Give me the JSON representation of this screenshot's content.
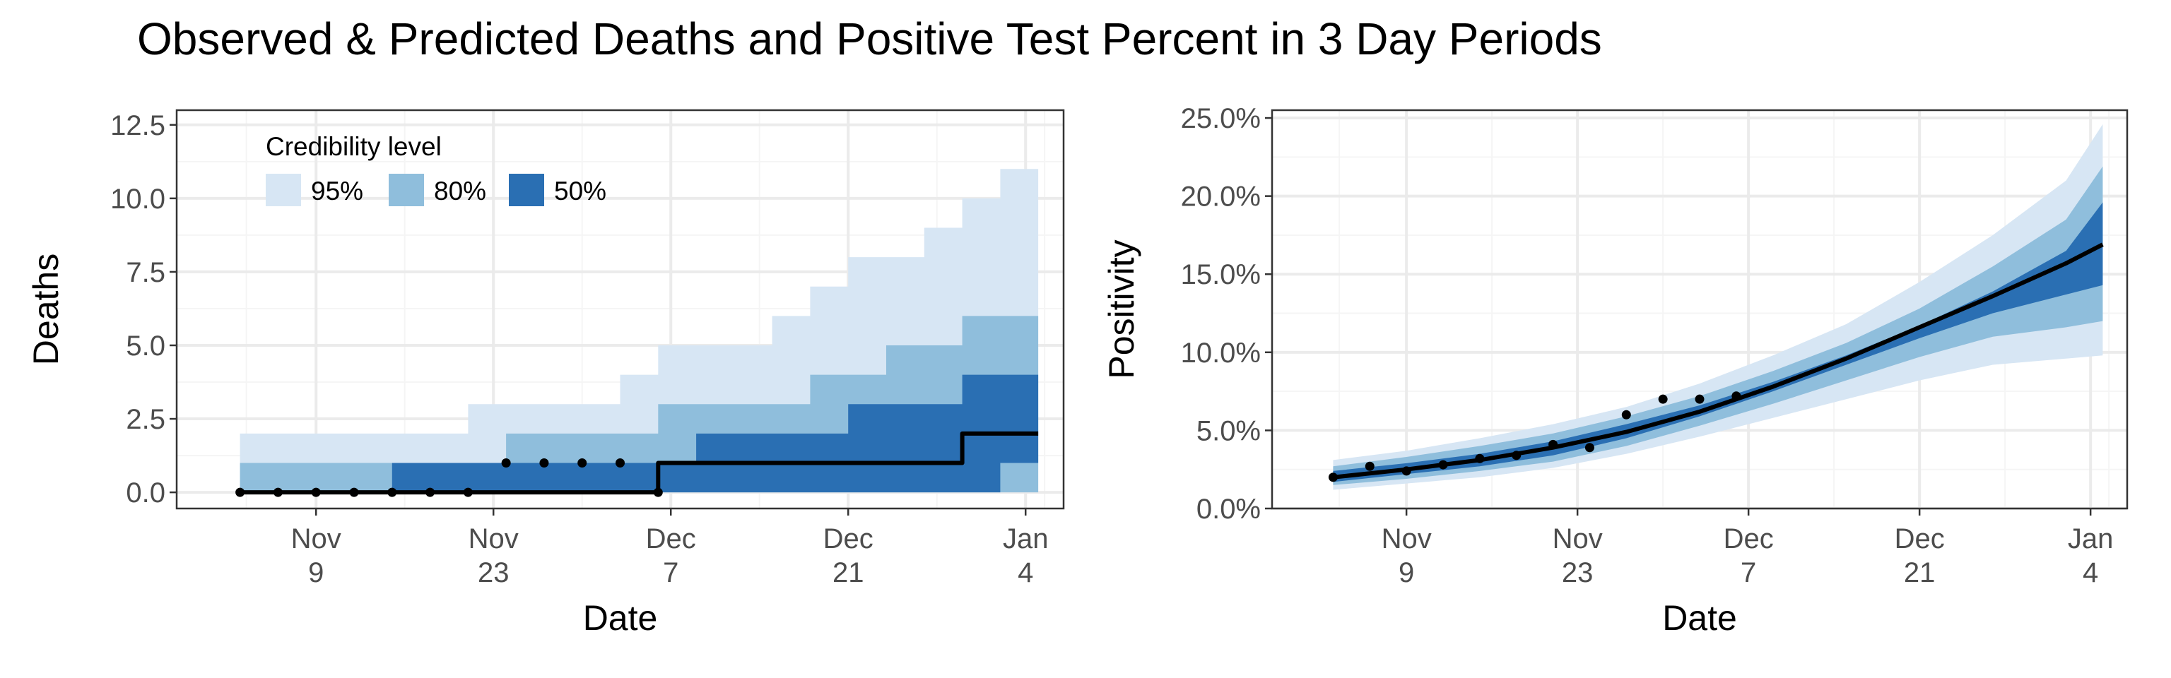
{
  "title": "Observed & Predicted Deaths and Positive Test Percent in 3 Day Periods",
  "colors": {
    "band95": "#d7e6f4",
    "band80": "#8fbedc",
    "band50": "#2a6fb3",
    "line": "#000000",
    "grid_major": "#ebebeb",
    "grid_minor": "#f5f5f5",
    "border": "#333333"
  },
  "legend": {
    "title": "Credibility level",
    "items": [
      "95%",
      "80%",
      "50%"
    ],
    "placement": "top-left inside deaths panel"
  },
  "chart_data": [
    {
      "type": "area",
      "panel": "deaths",
      "xlabel": "Date",
      "ylabel": "Deaths",
      "ylim": [
        -0.55,
        13.0
      ],
      "xlim": [
        "2020-10-29",
        "2021-01-07"
      ],
      "x_ticks": [
        "2020-11-09",
        "2020-11-23",
        "2020-12-07",
        "2020-12-21",
        "2021-01-04"
      ],
      "x_tick_labels": [
        [
          "Nov",
          "9"
        ],
        [
          "Nov",
          "23"
        ],
        [
          "Dec",
          "7"
        ],
        [
          "Dec",
          "21"
        ],
        [
          "Jan",
          "4"
        ]
      ],
      "y_ticks": [
        0,
        2.5,
        5,
        7.5,
        10,
        12.5
      ],
      "y_tick_labels": [
        "0.0",
        "2.5",
        "5.0",
        "7.5",
        "10.0",
        "12.5"
      ],
      "grid": true,
      "dates": [
        "2020-11-03",
        "2020-11-06",
        "2020-11-09",
        "2020-11-12",
        "2020-11-15",
        "2020-11-18",
        "2020-11-21",
        "2020-11-24",
        "2020-11-27",
        "2020-11-30",
        "2020-12-03",
        "2020-12-06",
        "2020-12-09",
        "2020-12-12",
        "2020-12-15",
        "2020-12-18",
        "2020-12-21",
        "2020-12-24",
        "2020-12-27",
        "2020-12-30",
        "2021-01-02",
        "2021-01-05"
      ],
      "band95": {
        "lower": [
          0,
          0,
          0,
          0,
          0,
          0,
          0,
          0,
          0,
          0,
          0,
          0,
          0,
          0,
          0,
          0,
          0,
          0,
          0,
          0,
          0,
          0
        ],
        "upper": [
          2,
          2,
          2,
          2,
          2,
          2,
          3,
          3,
          3,
          3,
          4,
          5,
          5,
          5,
          6,
          7,
          8,
          8,
          9,
          10,
          11,
          12
        ]
      },
      "band80": {
        "lower": [
          0,
          0,
          0,
          0,
          0,
          0,
          0,
          0,
          0,
          0,
          0,
          0,
          0,
          0,
          0,
          0,
          0,
          0,
          0,
          0,
          0,
          0
        ],
        "upper": [
          1,
          1,
          1,
          1,
          1,
          1,
          1,
          2,
          2,
          2,
          2,
          3,
          3,
          3,
          3,
          4,
          4,
          5,
          5,
          6,
          6,
          7
        ]
      },
      "band50": {
        "lower": [
          0,
          0,
          0,
          0,
          0,
          0,
          0,
          0,
          0,
          0,
          0,
          0,
          0,
          0,
          0,
          0,
          0,
          0,
          0,
          0,
          1,
          1
        ],
        "upper": [
          0,
          0,
          0,
          0,
          1,
          1,
          1,
          1,
          1,
          1,
          1,
          1,
          2,
          2,
          2,
          2,
          3,
          3,
          3,
          4,
          4,
          4
        ]
      },
      "predicted": [
        0,
        0,
        0,
        0,
        0,
        0,
        0,
        0,
        0,
        0,
        0,
        1,
        1,
        1,
        1,
        1,
        1,
        1,
        1,
        2,
        2,
        2
      ],
      "observed": [
        {
          "x": "2020-11-03",
          "y": 0
        },
        {
          "x": "2020-11-06",
          "y": 0
        },
        {
          "x": "2020-11-09",
          "y": 0
        },
        {
          "x": "2020-11-12",
          "y": 0
        },
        {
          "x": "2020-11-15",
          "y": 0
        },
        {
          "x": "2020-11-18",
          "y": 0
        },
        {
          "x": "2020-11-21",
          "y": 0
        },
        {
          "x": "2020-11-24",
          "y": 1
        },
        {
          "x": "2020-11-27",
          "y": 1
        },
        {
          "x": "2020-11-30",
          "y": 1
        },
        {
          "x": "2020-12-03",
          "y": 1
        },
        {
          "x": "2020-12-06",
          "y": 0
        }
      ]
    },
    {
      "type": "area",
      "panel": "positivity",
      "xlabel": "Date",
      "ylabel": "Positivity",
      "ylim": [
        0,
        0.255
      ],
      "xlim": [
        "2020-10-29",
        "2021-01-07"
      ],
      "x_ticks": [
        "2020-11-09",
        "2020-11-23",
        "2020-12-07",
        "2020-12-21",
        "2021-01-04"
      ],
      "x_tick_labels": [
        [
          "Nov",
          "9"
        ],
        [
          "Nov",
          "23"
        ],
        [
          "Dec",
          "7"
        ],
        [
          "Dec",
          "21"
        ],
        [
          "Jan",
          "4"
        ]
      ],
      "y_ticks": [
        0,
        0.05,
        0.1,
        0.15,
        0.2,
        0.25
      ],
      "y_tick_labels": [
        "0.0%",
        "5.0%",
        "10.0%",
        "15.0%",
        "20.0%",
        "25.0%"
      ],
      "grid": true,
      "dates": [
        "2020-11-03",
        "2020-11-09",
        "2020-11-15",
        "2020-11-21",
        "2020-11-27",
        "2020-12-03",
        "2020-12-09",
        "2020-12-15",
        "2020-12-21",
        "2020-12-27",
        "2021-01-02",
        "2021-01-05"
      ],
      "band95": {
        "lower": [
          0.012,
          0.016,
          0.02,
          0.026,
          0.035,
          0.046,
          0.058,
          0.07,
          0.082,
          0.092,
          0.096,
          0.098
        ],
        "upper": [
          0.031,
          0.037,
          0.045,
          0.054,
          0.065,
          0.08,
          0.098,
          0.118,
          0.145,
          0.175,
          0.21,
          0.246
        ]
      },
      "band80": {
        "lower": [
          0.015,
          0.019,
          0.024,
          0.03,
          0.04,
          0.053,
          0.067,
          0.082,
          0.097,
          0.11,
          0.116,
          0.12
        ],
        "upper": [
          0.027,
          0.033,
          0.04,
          0.048,
          0.059,
          0.072,
          0.088,
          0.106,
          0.128,
          0.155,
          0.185,
          0.219
        ]
      },
      "band50": {
        "lower": [
          0.017,
          0.022,
          0.027,
          0.034,
          0.045,
          0.059,
          0.075,
          0.092,
          0.109,
          0.125,
          0.137,
          0.143
        ],
        "upper": [
          0.024,
          0.029,
          0.035,
          0.043,
          0.054,
          0.066,
          0.081,
          0.098,
          0.117,
          0.139,
          0.165,
          0.196
        ]
      },
      "predicted": [
        0.02,
        0.025,
        0.031,
        0.039,
        0.049,
        0.062,
        0.078,
        0.096,
        0.116,
        0.136,
        0.157,
        0.169
      ],
      "observed": [
        {
          "x": "2020-11-03",
          "y": 0.02
        },
        {
          "x": "2020-11-06",
          "y": 0.027
        },
        {
          "x": "2020-11-09",
          "y": 0.024
        },
        {
          "x": "2020-11-12",
          "y": 0.028
        },
        {
          "x": "2020-11-15",
          "y": 0.032
        },
        {
          "x": "2020-11-18",
          "y": 0.034
        },
        {
          "x": "2020-11-21",
          "y": 0.041
        },
        {
          "x": "2020-11-24",
          "y": 0.039
        },
        {
          "x": "2020-11-27",
          "y": 0.06
        },
        {
          "x": "2020-11-30",
          "y": 0.07
        },
        {
          "x": "2020-12-03",
          "y": 0.07
        },
        {
          "x": "2020-12-06",
          "y": 0.072
        }
      ]
    }
  ]
}
